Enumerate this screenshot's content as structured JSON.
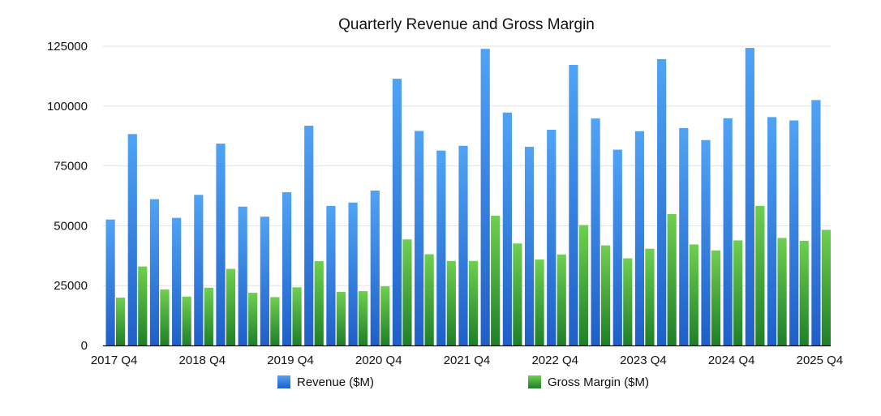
{
  "chart_data": {
    "type": "bar",
    "title": "Quarterly Revenue and Gross Margin",
    "categories": [
      "2017 Q4",
      "2018 Q1",
      "2018 Q2",
      "2018 Q3",
      "2018 Q4",
      "2019 Q1",
      "2019 Q2",
      "2019 Q3",
      "2019 Q4",
      "2020 Q1",
      "2020 Q2",
      "2020 Q3",
      "2020 Q4",
      "2021 Q1",
      "2021 Q2",
      "2021 Q3",
      "2021 Q4",
      "2022 Q1",
      "2022 Q2",
      "2022 Q3",
      "2022 Q4",
      "2023 Q1",
      "2023 Q2",
      "2023 Q3",
      "2023 Q4",
      "2024 Q1",
      "2024 Q2",
      "2024 Q3",
      "2024 Q4",
      "2025 Q1",
      "2025 Q2",
      "2025 Q3",
      "2025 Q4"
    ],
    "x_tick_labels": [
      "2017 Q4",
      "2018 Q4",
      "2019 Q4",
      "2020 Q4",
      "2021 Q4",
      "2022 Q4",
      "2023 Q4",
      "2024 Q4",
      "2025 Q4"
    ],
    "y_ticks": [
      0,
      25000,
      50000,
      75000,
      100000,
      125000
    ],
    "ylim": [
      0,
      125000
    ],
    "grid": true,
    "legend_position": "bottom",
    "series": [
      {
        "name": "Revenue ($M)",
        "color": "#2f7fdc",
        "values": [
          52600,
          88300,
          61100,
          53300,
          62900,
          84300,
          58000,
          53800,
          64000,
          91800,
          58300,
          59700,
          64700,
          111400,
          89600,
          81400,
          83400,
          123900,
          97300,
          83000,
          90100,
          117200,
          94800,
          81800,
          89500,
          119600,
          90800,
          85800,
          94900,
          124300,
          95400,
          94000,
          102500
        ]
      },
      {
        "name": "Gross Margin ($M)",
        "color": "#3f9f35",
        "values": [
          20000,
          33000,
          23400,
          20400,
          24100,
          32000,
          22000,
          20200,
          24300,
          35200,
          22400,
          22700,
          24700,
          44300,
          38100,
          35300,
          35300,
          54200,
          42600,
          35900,
          38000,
          50300,
          41800,
          36400,
          40400,
          54900,
          42200,
          39700,
          43900,
          58300,
          44900,
          43700,
          48300
        ]
      }
    ]
  }
}
